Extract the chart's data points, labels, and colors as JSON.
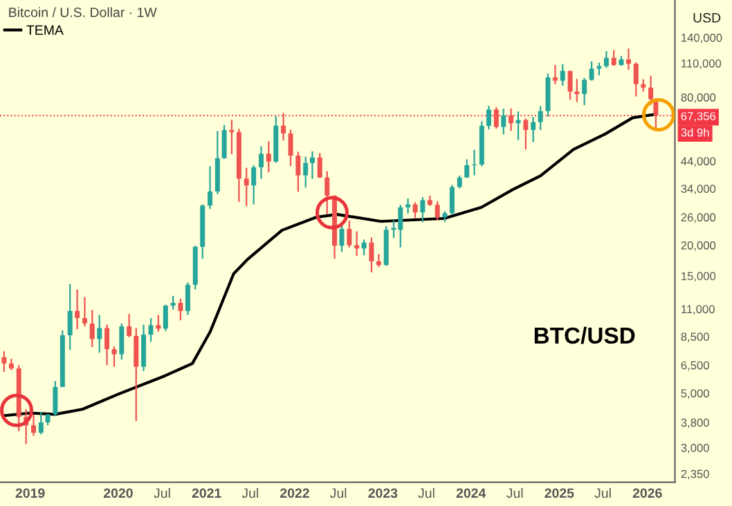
{
  "chart_data": {
    "type": "candlestick",
    "title": "Bitcoin / U.S. Dollar · 1W",
    "ylabel": "USD",
    "x": [
      "2018-09-15",
      "2018-10-15",
      "2018-11-15",
      "2018-12-15",
      "2019-01-15",
      "2019-02-15",
      "2019-03-15",
      "2019-04-15",
      "2019-05-15",
      "2019-06-15",
      "2019-07-15",
      "2019-08-15",
      "2019-09-15",
      "2019-10-15",
      "2019-11-15",
      "2019-12-15",
      "2020-01-15",
      "2020-02-15",
      "2020-03-15",
      "2020-04-15",
      "2020-05-15",
      "2020-06-15",
      "2020-07-15",
      "2020-08-15",
      "2020-09-15",
      "2020-10-15",
      "2020-11-15",
      "2020-12-15",
      "2021-01-15",
      "2021-02-15",
      "2021-03-15",
      "2021-04-15",
      "2021-05-15",
      "2021-06-15",
      "2021-07-15",
      "2021-08-15",
      "2021-09-15",
      "2021-10-15",
      "2021-11-15",
      "2021-12-15",
      "2022-01-15",
      "2022-02-15",
      "2022-03-15",
      "2022-04-15",
      "2022-05-15",
      "2022-06-15",
      "2022-07-15",
      "2022-08-15",
      "2022-09-15",
      "2022-10-15",
      "2022-11-15",
      "2022-12-15",
      "2023-01-15",
      "2023-02-15",
      "2023-03-15",
      "2023-04-15",
      "2023-05-15",
      "2023-06-15",
      "2023-07-15",
      "2023-08-15",
      "2023-09-15",
      "2023-10-15",
      "2023-11-15",
      "2023-12-15",
      "2024-01-15",
      "2024-02-15",
      "2024-03-15",
      "2024-04-15",
      "2024-05-15",
      "2024-06-15",
      "2024-07-15",
      "2024-08-15",
      "2024-09-15",
      "2024-10-15",
      "2024-11-15",
      "2024-12-15",
      "2025-01-15",
      "2025-02-15",
      "2025-03-15",
      "2025-04-15",
      "2025-05-15",
      "2025-06-15",
      "2025-07-15",
      "2025-08-15",
      "2025-09-15",
      "2025-10-15",
      "2025-11-15",
      "2025-12-15",
      "2026-01-15",
      "2026-02-05"
    ],
    "ohlc": [
      [
        7000,
        7400,
        6100,
        6600
      ],
      [
        6600,
        6900,
        6200,
        6300
      ],
      [
        6300,
        6500,
        3500,
        4000
      ],
      [
        4000,
        4300,
        3100,
        3700
      ],
      [
        3700,
        4100,
        3350,
        3450
      ],
      [
        3450,
        4200,
        3400,
        3800
      ],
      [
        3800,
        4100,
        3700,
        4100
      ],
      [
        4100,
        5600,
        4050,
        5300
      ],
      [
        5300,
        9000,
        5300,
        8600
      ],
      [
        8600,
        13900,
        7500,
        10800
      ],
      [
        10800,
        13200,
        9100,
        10100
      ],
      [
        10100,
        12300,
        9350,
        9600
      ],
      [
        9600,
        10900,
        7700,
        8300
      ],
      [
        8300,
        10400,
        7300,
        9200
      ],
      [
        9200,
        9500,
        6500,
        7550
      ],
      [
        7550,
        7750,
        6400,
        7200
      ],
      [
        7200,
        9600,
        6850,
        9350
      ],
      [
        9350,
        10500,
        8450,
        8550
      ],
      [
        8550,
        9200,
        3850,
        6400
      ],
      [
        6400,
        9500,
        6150,
        8650
      ],
      [
        8650,
        10100,
        8100,
        9450
      ],
      [
        9450,
        10400,
        8900,
        9150
      ],
      [
        9150,
        11450,
        8950,
        11350
      ],
      [
        11350,
        12450,
        10950,
        11650
      ],
      [
        11650,
        12100,
        9900,
        10800
      ],
      [
        10800,
        14100,
        10400,
        13800
      ],
      [
        13800,
        19900,
        13200,
        19700
      ],
      [
        19700,
        29300,
        17600,
        29000
      ],
      [
        29000,
        41900,
        28100,
        33100
      ],
      [
        33100,
        58300,
        32300,
        45200
      ],
      [
        45200,
        61700,
        44900,
        58800
      ],
      [
        58800,
        64800,
        47000,
        57700
      ],
      [
        57700,
        59500,
        30000,
        37300
      ],
      [
        37300,
        41300,
        28800,
        35000
      ],
      [
        35000,
        42300,
        29300,
        41500
      ],
      [
        41500,
        50500,
        37300,
        47100
      ],
      [
        47100,
        52900,
        39600,
        43800
      ],
      [
        43800,
        67000,
        43300,
        61300
      ],
      [
        61300,
        69000,
        53300,
        57000
      ],
      [
        57000,
        59000,
        42000,
        46300
      ],
      [
        46300,
        48000,
        33000,
        38500
      ],
      [
        38500,
        45800,
        34300,
        43200
      ],
      [
        43200,
        48200,
        37200,
        45500
      ],
      [
        45500,
        47400,
        37600,
        37700
      ],
      [
        37700,
        40000,
        26700,
        31800
      ],
      [
        31800,
        31900,
        17600,
        19900
      ],
      [
        19900,
        24700,
        18800,
        23300
      ],
      [
        23300,
        25200,
        19600,
        20000
      ],
      [
        20000,
        22800,
        18100,
        19400
      ],
      [
        19400,
        21100,
        18200,
        20500
      ],
      [
        20500,
        21500,
        15500,
        17200
      ],
      [
        17200,
        18400,
        16300,
        16600
      ],
      [
        16600,
        23900,
        16500,
        23100
      ],
      [
        23100,
        25300,
        21400,
        23500
      ],
      [
        23100,
        29200,
        19600,
        28500
      ],
      [
        28500,
        31000,
        26900,
        29300
      ],
      [
        29300,
        29900,
        25800,
        27200
      ],
      [
        27200,
        31400,
        24800,
        30500
      ],
      [
        30500,
        31800,
        28900,
        29200
      ],
      [
        29200,
        30200,
        25200,
        26000
      ],
      [
        26000,
        27500,
        24900,
        27000
      ],
      [
        27000,
        35200,
        26600,
        34500
      ],
      [
        34500,
        38400,
        34100,
        37700
      ],
      [
        37700,
        44700,
        37600,
        42300
      ],
      [
        42300,
        48900,
        38500,
        42600
      ],
      [
        42600,
        63900,
        41900,
        61200
      ],
      [
        61200,
        73800,
        59200,
        71300
      ],
      [
        71300,
        72800,
        59600,
        60600
      ],
      [
        60600,
        71900,
        56500,
        67500
      ],
      [
        67500,
        72000,
        58400,
        62700
      ],
      [
        62700,
        70000,
        53500,
        64600
      ],
      [
        64600,
        65600,
        49000,
        58900
      ],
      [
        58900,
        66500,
        52600,
        63300
      ],
      [
        63300,
        73600,
        58900,
        70300
      ],
      [
        70300,
        99800,
        66800,
        96400
      ],
      [
        96400,
        108300,
        90500,
        93400
      ],
      [
        93400,
        109300,
        89200,
        102400
      ],
      [
        102400,
        102500,
        78200,
        84300
      ],
      [
        84300,
        95000,
        76600,
        82500
      ],
      [
        82500,
        95800,
        74400,
        94200
      ],
      [
        94200,
        112000,
        93400,
        104600
      ],
      [
        104600,
        110500,
        98200,
        107100
      ],
      [
        107100,
        123200,
        105300,
        115700
      ],
      [
        115700,
        124500,
        107300,
        108200
      ],
      [
        108200,
        117900,
        107300,
        114000
      ],
      [
        114000,
        126200,
        103500,
        109500
      ],
      [
        109500,
        111000,
        80600,
        90400
      ],
      [
        90400,
        94600,
        84400,
        87500
      ],
      [
        87500,
        97900,
        74500,
        78600
      ],
      [
        78600,
        79300,
        60000,
        67356
      ]
    ],
    "colors": [
      "#ef5350",
      "#ef5350",
      "#ef5350",
      "#ef5350",
      "#ef5350",
      "#26a69a",
      "#26a69a",
      "#26a69a",
      "#26a69a",
      "#26a69a",
      "#ef5350",
      "#ef5350",
      "#ef5350",
      "#26a69a",
      "#ef5350",
      "#ef5350",
      "#26a69a",
      "#ef5350",
      "#ef5350",
      "#26a69a",
      "#26a69a",
      "#ef5350",
      "#26a69a",
      "#26a69a",
      "#ef5350",
      "#26a69a",
      "#26a69a",
      "#26a69a",
      "#26a69a",
      "#26a69a",
      "#26a69a",
      "#ef5350",
      "#ef5350",
      "#ef5350",
      "#26a69a",
      "#26a69a",
      "#ef5350",
      "#26a69a",
      "#ef5350",
      "#ef5350",
      "#ef5350",
      "#26a69a",
      "#26a69a",
      "#ef5350",
      "#ef5350",
      "#ef5350",
      "#26a69a",
      "#ef5350",
      "#ef5350",
      "#26a69a",
      "#ef5350",
      "#ef5350",
      "#26a69a",
      "#26a69a",
      "#26a69a",
      "#26a69a",
      "#ef5350",
      "#26a69a",
      "#ef5350",
      "#ef5350",
      "#26a69a",
      "#26a69a",
      "#26a69a",
      "#26a69a",
      "#26a69a",
      "#26a69a",
      "#26a69a",
      "#ef5350",
      "#26a69a",
      "#ef5350",
      "#26a69a",
      "#ef5350",
      "#26a69a",
      "#26a69a",
      "#26a69a",
      "#ef5350",
      "#26a69a",
      "#ef5350",
      "#ef5350",
      "#26a69a",
      "#26a69a",
      "#26a69a",
      "#26a69a",
      "#ef5350",
      "#26a69a",
      "#ef5350",
      "#ef5350",
      "#ef5350",
      "#ef5350",
      "#ef5350"
    ],
    "series": [
      {
        "name": "TEMA",
        "type": "line",
        "color": "#000000",
        "x": [
          "2018-09-15",
          "2019-01-01",
          "2019-04-14",
          "2019-08-06",
          "2020-01-05",
          "2020-07-12",
          "2020-11-03",
          "2021-01-16",
          "2021-04-23",
          "2021-06-19",
          "2021-11-09",
          "2022-03-31",
          "2022-06-25",
          "2022-12-24",
          "2023-09-12",
          "2024-02-13",
          "2024-06-23",
          "2024-10-15",
          "2025-03-01",
          "2025-07-10",
          "2025-11-01",
          "2026-01-25"
        ],
        "values": [
          4050,
          4150,
          4100,
          4300,
          4970,
          5880,
          6600,
          8900,
          15300,
          17500,
          23000,
          26000,
          26700,
          25000,
          25700,
          28500,
          33700,
          38300,
          49100,
          56700,
          66000,
          68000
        ]
      }
    ],
    "log": "y",
    "ylim": [
      2170,
      199000
    ],
    "yticks": [
      {
        "value": 2350,
        "label": "2,350"
      },
      {
        "value": 3000,
        "label": "3,000"
      },
      {
        "value": 3800,
        "label": "3,800"
      },
      {
        "value": 5000,
        "label": "5,000"
      },
      {
        "value": 6500,
        "label": "6,500"
      },
      {
        "value": 8500,
        "label": "8,500"
      },
      {
        "value": 11000,
        "label": "11,000"
      },
      {
        "value": 15000,
        "label": "15,000"
      },
      {
        "value": 20000,
        "label": "20,000"
      },
      {
        "value": 26000,
        "label": "26,000"
      },
      {
        "value": 34000,
        "label": "34,000"
      },
      {
        "value": 44000,
        "label": "44,000"
      },
      {
        "value": 80000,
        "label": "80,000"
      },
      {
        "value": 110000,
        "label": "110,000"
      },
      {
        "value": 140000,
        "label": "140,000"
      }
    ],
    "xlim": [
      "2018-08-29",
      "2026-04-25"
    ],
    "xticks": [
      "2019",
      "2020",
      {
        "value": "2020-07",
        "label": "Jul"
      },
      "2021",
      {
        "value": "2021-07",
        "label": "Jul"
      },
      "2022",
      {
        "value": "2022-07",
        "label": "Jul"
      },
      "2023",
      {
        "value": "2023-07",
        "label": "Jul"
      },
      "2024",
      {
        "value": "2024-07",
        "label": "Jul"
      },
      "2025",
      {
        "value": "2025-07",
        "label": "Jul"
      },
      "2026"
    ],
    "ref_lines": [
      {
        "axis": "y",
        "value": 67356,
        "label": "67,356",
        "color": "#f23645",
        "line_style": "dotted"
      }
    ],
    "annotations": [
      "3d 9h",
      "BTC/USD"
    ],
    "legend": "top left",
    "grid": false
  }
}
